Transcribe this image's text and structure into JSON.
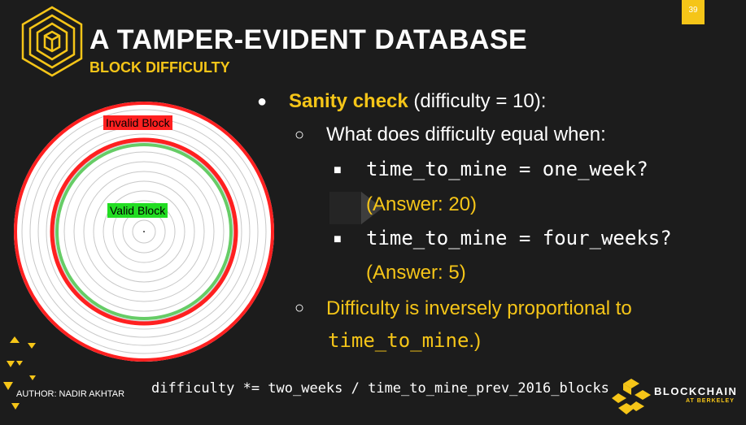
{
  "header": {
    "title": "A TAMPER-EVIDENT DATABASE",
    "subtitle": "BLOCK DIFFICULTY",
    "page_number": "39"
  },
  "diagram": {
    "invalid_label": "Invalid Block",
    "valid_label": "Valid Block"
  },
  "bullets": {
    "sanity_check": "Sanity check",
    "sanity_suffix": " (difficulty = 10):",
    "question": "What does difficulty equal when:",
    "q1_code": "time_to_mine = one_week?",
    "q1_answer": "(Answer: 20)",
    "q2_code": "time_to_mine = four_weeks?",
    "q2_answer": "(Answer: 5)",
    "inverse_line": "Difficulty is inversely proportional to",
    "inverse_code": "time_to_mine",
    "inverse_end": ".)"
  },
  "footer": {
    "formula": "difficulty *= two_weeks / time_to_mine_prev_2016_blocks",
    "author": "AUTHOR: NADIR AKHTAR",
    "brand_name": "BLOCKCHAIN",
    "brand_sub": "AT BERKELEY"
  },
  "colors": {
    "accent": "#f5c518",
    "invalid": "#ff2020",
    "valid": "#22dd22",
    "background": "#1c1c1c"
  },
  "icons": [
    "hexagon-cube-logo",
    "play-icon",
    "triangle-decoration",
    "blockchain-berkeley-logo"
  ]
}
